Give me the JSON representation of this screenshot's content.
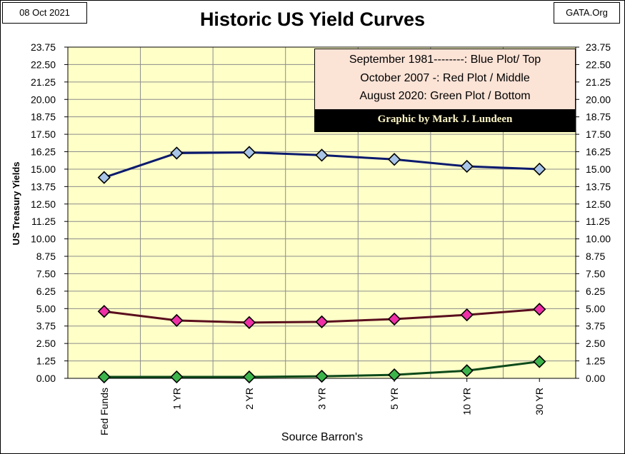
{
  "header": {
    "date": "08 Oct 2021",
    "source": "GATA.Org",
    "title": "Historic US Yield Curves"
  },
  "legend": {
    "lines": [
      "September 1981--------:  Blue Plot/ Top",
      "October 2007  -: Red Plot / Middle",
      "August 2020: Green Plot / Bottom"
    ],
    "credit": "Graphic by Mark J. Lundeen"
  },
  "colors": {
    "plot_background": "#ffffc8",
    "grid": "#8c8c8c",
    "series_1981_line": "#0a1a6e",
    "series_1981_marker": "#a8c4e8",
    "series_2007_line": "#5a0f1e",
    "series_2007_marker": "#ee2fa6",
    "series_2020_line": "#0c4a1a",
    "series_2020_marker": "#3cb44b"
  },
  "chart_data": {
    "type": "line",
    "title": "Historic US Yield Curves",
    "xlabel": "Source Barron's",
    "ylabel": "US Treasury Yields",
    "categories": [
      "Fed Funds",
      "1 YR",
      "2 YR",
      "3 YR",
      "5 YR",
      "10 YR",
      "30 YR"
    ],
    "ylim": [
      0,
      23.75
    ],
    "yticks": [
      "0.00",
      "1.25",
      "2.50",
      "3.75",
      "5.00",
      "6.25",
      "7.50",
      "8.75",
      "10.00",
      "11.25",
      "12.50",
      "13.75",
      "15.00",
      "16.25",
      "17.50",
      "18.75",
      "20.00",
      "21.25",
      "22.50",
      "23.75"
    ],
    "grid": true,
    "legend_position": "top-right",
    "series": [
      {
        "name": "September 1981",
        "values": [
          14.4,
          16.15,
          16.2,
          16.0,
          15.7,
          15.2,
          15.0
        ]
      },
      {
        "name": "October 2007",
        "values": [
          4.8,
          4.15,
          4.0,
          4.05,
          4.25,
          4.55,
          4.95
        ]
      },
      {
        "name": "August 2020",
        "values": [
          0.1,
          0.1,
          0.1,
          0.15,
          0.25,
          0.55,
          1.2
        ]
      }
    ]
  }
}
